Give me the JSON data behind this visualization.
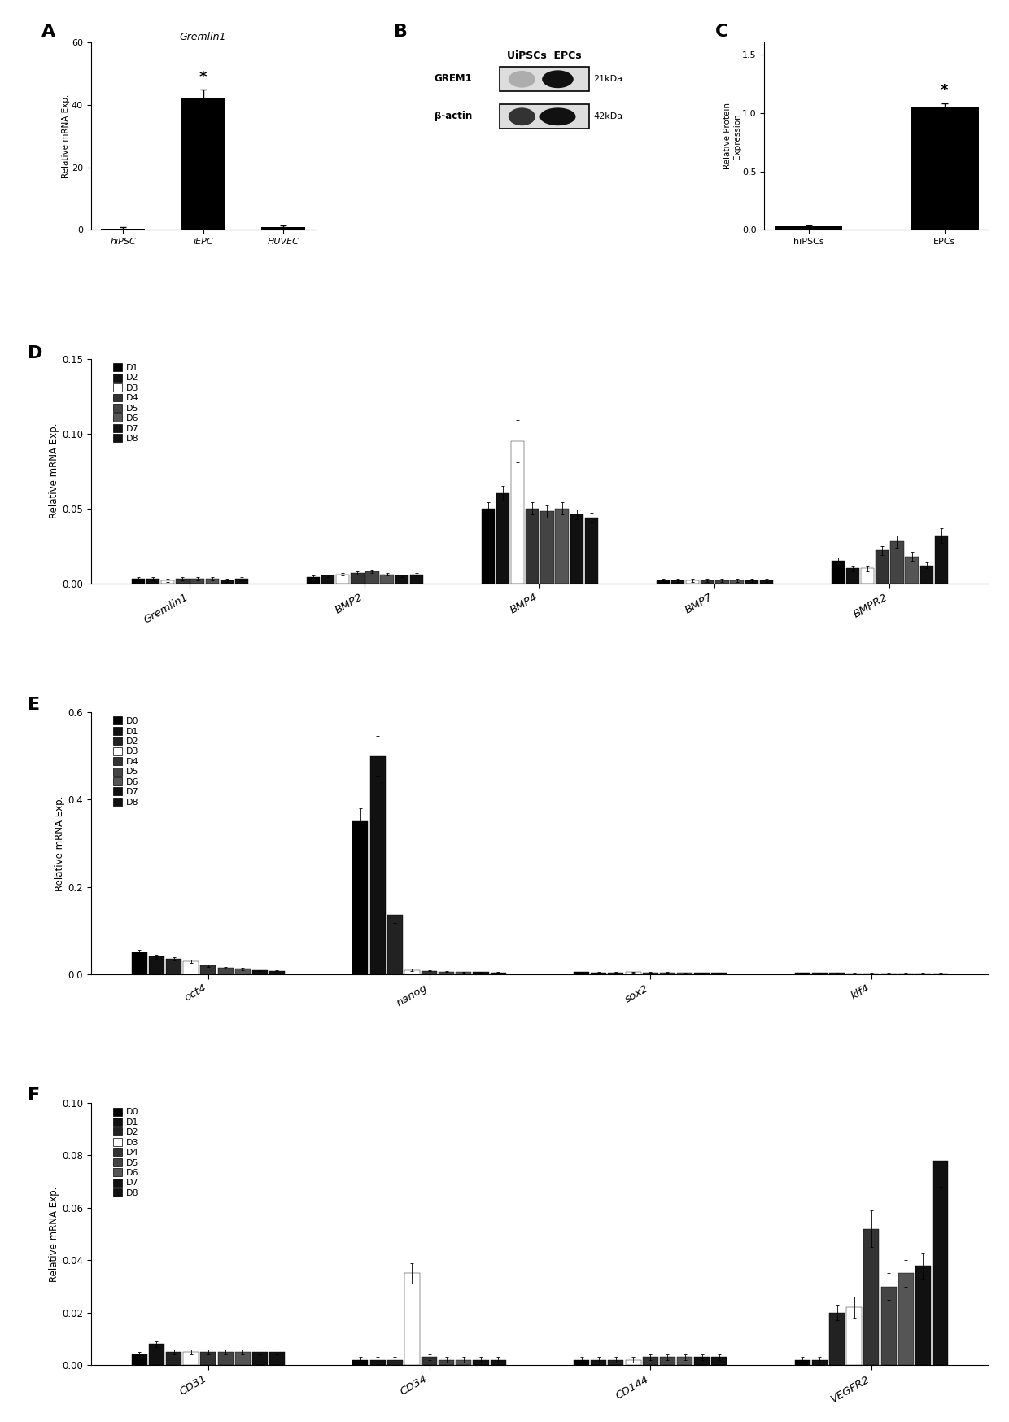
{
  "panel_A": {
    "title": "Gremlin1",
    "categories": [
      "hiPSC",
      "iEPC",
      "HUVEC"
    ],
    "values": [
      0.5,
      42,
      1.0
    ],
    "errors": [
      0.3,
      3.0,
      0.3
    ],
    "ylabel": "Relative mRNA Exp.",
    "ylim": [
      0,
      60
    ],
    "yticks": [
      0,
      20,
      40,
      60
    ]
  },
  "panel_C": {
    "categories": [
      "hiPSCs",
      "EPCs"
    ],
    "values": [
      0.03,
      1.05
    ],
    "errors": [
      0.005,
      0.03
    ],
    "ylabel": "Relative Protein\nExpression",
    "ylim": [
      0.0,
      1.6
    ],
    "yticks": [
      0.0,
      0.5,
      1.0,
      1.5
    ]
  },
  "panel_D": {
    "genes": [
      "Gremlin1",
      "BMP2",
      "BMP4",
      "BMP7",
      "BMPR2"
    ],
    "days": [
      "D1",
      "D2",
      "D3",
      "D4",
      "D5",
      "D6",
      "D7",
      "D8"
    ],
    "ylabel": "Relative mRNA Exp.",
    "ylim": [
      0,
      0.15
    ],
    "yticks": [
      0.0,
      0.05,
      0.1,
      0.15
    ],
    "data": {
      "Gremlin1": [
        0.003,
        0.003,
        0.002,
        0.003,
        0.003,
        0.003,
        0.002,
        0.003
      ],
      "BMP2": [
        0.004,
        0.005,
        0.006,
        0.007,
        0.008,
        0.006,
        0.005,
        0.006
      ],
      "BMP4": [
        0.05,
        0.06,
        0.095,
        0.05,
        0.048,
        0.05,
        0.046,
        0.044
      ],
      "BMP7": [
        0.002,
        0.002,
        0.002,
        0.002,
        0.002,
        0.002,
        0.002,
        0.002
      ],
      "BMPR2": [
        0.015,
        0.01,
        0.01,
        0.022,
        0.028,
        0.018,
        0.012,
        0.032
      ]
    },
    "errors": {
      "Gremlin1": [
        0.001,
        0.001,
        0.001,
        0.001,
        0.001,
        0.001,
        0.001,
        0.001
      ],
      "BMP2": [
        0.001,
        0.001,
        0.001,
        0.001,
        0.001,
        0.001,
        0.001,
        0.001
      ],
      "BMP4": [
        0.004,
        0.005,
        0.014,
        0.004,
        0.004,
        0.004,
        0.003,
        0.003
      ],
      "BMP7": [
        0.001,
        0.001,
        0.001,
        0.001,
        0.001,
        0.001,
        0.001,
        0.001
      ],
      "BMPR2": [
        0.002,
        0.002,
        0.002,
        0.003,
        0.004,
        0.003,
        0.002,
        0.005
      ]
    }
  },
  "panel_E": {
    "genes": [
      "oct4",
      "nanog",
      "sox2",
      "klf4"
    ],
    "days": [
      "D0",
      "D1",
      "D2",
      "D3",
      "D4",
      "D5",
      "D6",
      "D7",
      "D8"
    ],
    "ylabel": "Relative mRNA Exp.",
    "ylim": [
      0,
      0.6
    ],
    "yticks": [
      0.0,
      0.2,
      0.4,
      0.6
    ],
    "data": {
      "oct4": [
        0.05,
        0.04,
        0.035,
        0.03,
        0.02,
        0.015,
        0.012,
        0.01,
        0.008
      ],
      "nanog": [
        0.35,
        0.5,
        0.135,
        0.01,
        0.008,
        0.006,
        0.005,
        0.005,
        0.004
      ],
      "sox2": [
        0.005,
        0.004,
        0.004,
        0.005,
        0.004,
        0.004,
        0.003,
        0.003,
        0.003
      ],
      "klf4": [
        0.003,
        0.003,
        0.003,
        0.002,
        0.002,
        0.002,
        0.002,
        0.002,
        0.002
      ]
    },
    "errors": {
      "oct4": [
        0.006,
        0.005,
        0.004,
        0.004,
        0.003,
        0.002,
        0.002,
        0.002,
        0.001
      ],
      "nanog": [
        0.03,
        0.045,
        0.018,
        0.002,
        0.001,
        0.001,
        0.001,
        0.001,
        0.001
      ],
      "sox2": [
        0.001,
        0.001,
        0.001,
        0.001,
        0.001,
        0.001,
        0.001,
        0.001,
        0.001
      ],
      "klf4": [
        0.001,
        0.001,
        0.001,
        0.001,
        0.001,
        0.001,
        0.001,
        0.001,
        0.001
      ]
    }
  },
  "panel_F": {
    "genes": [
      "CD31",
      "CD34",
      "CD144",
      "VEGFR2"
    ],
    "days": [
      "D0",
      "D1",
      "D2",
      "D3",
      "D4",
      "D5",
      "D6",
      "D7",
      "D8"
    ],
    "ylabel": "Relative mRNA Exp.",
    "ylim": [
      0,
      0.1
    ],
    "yticks": [
      0.0,
      0.02,
      0.04,
      0.06,
      0.08,
      0.1
    ],
    "data": {
      "CD31": [
        0.004,
        0.008,
        0.005,
        0.005,
        0.005,
        0.005,
        0.005,
        0.005,
        0.005
      ],
      "CD34": [
        0.002,
        0.002,
        0.002,
        0.035,
        0.003,
        0.002,
        0.002,
        0.002,
        0.002
      ],
      "CD144": [
        0.002,
        0.002,
        0.002,
        0.002,
        0.003,
        0.003,
        0.003,
        0.003,
        0.003
      ],
      "VEGFR2": [
        0.002,
        0.002,
        0.02,
        0.022,
        0.052,
        0.03,
        0.035,
        0.038,
        0.078
      ]
    },
    "errors": {
      "CD31": [
        0.001,
        0.001,
        0.001,
        0.001,
        0.001,
        0.001,
        0.001,
        0.001,
        0.001
      ],
      "CD34": [
        0.001,
        0.001,
        0.001,
        0.004,
        0.001,
        0.001,
        0.001,
        0.001,
        0.001
      ],
      "CD144": [
        0.001,
        0.001,
        0.001,
        0.001,
        0.001,
        0.001,
        0.001,
        0.001,
        0.001
      ],
      "VEGFR2": [
        0.001,
        0.001,
        0.003,
        0.004,
        0.007,
        0.005,
        0.005,
        0.005,
        0.01
      ]
    }
  },
  "colors_D1_8": [
    "#000000",
    "#111111",
    "#ffffff",
    "#333333",
    "#444444",
    "#555555",
    "#111111",
    "#111111"
  ],
  "colors_D1_8_edge": [
    "#000000",
    "#000000",
    "#000000",
    "#000000",
    "#000000",
    "#000000",
    "#000000",
    "#000000"
  ],
  "colors_D0_8": [
    "#000000",
    "#111111",
    "#222222",
    "#ffffff",
    "#333333",
    "#444444",
    "#555555",
    "#111111",
    "#111111"
  ],
  "colors_D0_8_edge": [
    "#000000",
    "#000000",
    "#000000",
    "#000000",
    "#000000",
    "#000000",
    "#000000",
    "#000000",
    "#000000"
  ],
  "bg_color": "#ffffff",
  "bar_color": "#000000"
}
